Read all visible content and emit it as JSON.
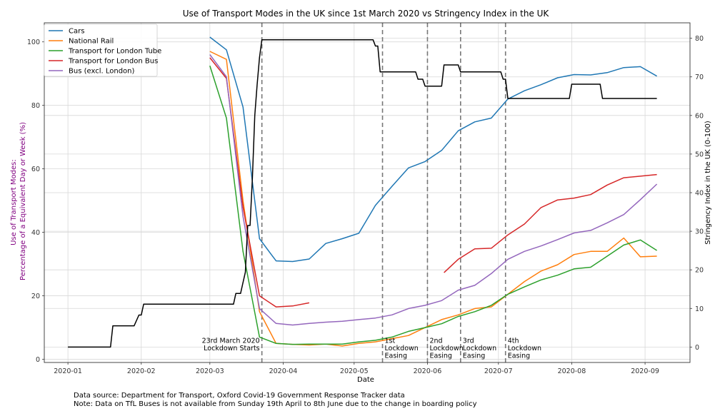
{
  "chart_data": {
    "type": "line",
    "title": "Use of Transport Modes in the UK since 1st March 2020 vs Stringency Index in the UK",
    "xlabel": "Date",
    "ylabel_left_lines": [
      "Use of Transport Modes:",
      "Percentage of a Equivalent Day or Week (%)"
    ],
    "ylabel_right": "Stringency Index in the UK (0-100)",
    "x_ticks": [
      "2020-01",
      "2020-02",
      "2020-03",
      "2020-04",
      "2020-05",
      "2020-06",
      "2020-07",
      "2020-08",
      "2020-09"
    ],
    "x_tick_dates": [
      "2020-01-01",
      "2020-02-01",
      "2020-03-01",
      "2020-04-01",
      "2020-05-01",
      "2020-06-01",
      "2020-07-01",
      "2020-08-01",
      "2020-09-01"
    ],
    "xlim": [
      "2019-12-22",
      "2020-09-20"
    ],
    "ylim_left": [
      -1,
      106
    ],
    "yticks_left": [
      0,
      20,
      40,
      60,
      80,
      100
    ],
    "ylim_right": [
      -4,
      84
    ],
    "yticks_right": [
      0,
      10,
      20,
      30,
      40,
      50,
      60,
      70,
      80
    ],
    "grid": true,
    "legend_position": "top-left",
    "colors": {
      "cars": "#1f77b4",
      "rail": "#ff7f0e",
      "tube": "#2ca02c",
      "tflbus": "#d62728",
      "bus": "#9467bd",
      "stringency": "#000000",
      "left_axis_text": "#800080"
    },
    "series": [
      {
        "name": "Cars",
        "color": "#1f77b4",
        "points": [
          [
            "2020-03-01",
            101.5
          ],
          [
            "2020-03-08",
            97.5
          ],
          [
            "2020-03-15",
            79.5
          ],
          [
            "2020-03-22",
            38
          ],
          [
            "2020-03-29",
            31
          ],
          [
            "2020-04-05",
            30.8
          ],
          [
            "2020-04-12",
            31.6
          ],
          [
            "2020-04-19",
            36.5
          ],
          [
            "2020-04-26",
            38
          ],
          [
            "2020-05-03",
            39.7
          ],
          [
            "2020-05-10",
            48.5
          ],
          [
            "2020-05-17",
            54.5
          ],
          [
            "2020-05-24",
            60.3
          ],
          [
            "2020-05-31",
            62.3
          ],
          [
            "2020-06-07",
            65.8
          ],
          [
            "2020-06-14",
            72
          ],
          [
            "2020-06-21",
            74.8
          ],
          [
            "2020-06-28",
            76
          ],
          [
            "2020-07-05",
            82
          ],
          [
            "2020-07-12",
            84.6
          ],
          [
            "2020-07-19",
            86.5
          ],
          [
            "2020-07-26",
            88.7
          ],
          [
            "2020-08-02",
            89.7
          ],
          [
            "2020-08-09",
            89.6
          ],
          [
            "2020-08-16",
            90.3
          ],
          [
            "2020-08-23",
            91.9
          ],
          [
            "2020-08-30",
            92.2
          ],
          [
            "2020-09-06",
            89.2
          ]
        ]
      },
      {
        "name": "National Rail",
        "color": "#ff7f0e",
        "points": [
          [
            "2020-03-01",
            97
          ],
          [
            "2020-03-08",
            94.5
          ],
          [
            "2020-03-15",
            50
          ],
          [
            "2020-03-22",
            15
          ],
          [
            "2020-03-29",
            5
          ],
          [
            "2020-04-05",
            4.7
          ],
          [
            "2020-04-12",
            4.5
          ],
          [
            "2020-04-19",
            4.8
          ],
          [
            "2020-04-26",
            4.2
          ],
          [
            "2020-05-03",
            5
          ],
          [
            "2020-05-10",
            5.5
          ],
          [
            "2020-05-17",
            6.5
          ],
          [
            "2020-05-24",
            7.5
          ],
          [
            "2020-05-31",
            10
          ],
          [
            "2020-06-07",
            12.5
          ],
          [
            "2020-06-14",
            14
          ],
          [
            "2020-06-21",
            16
          ],
          [
            "2020-06-28",
            16.5
          ],
          [
            "2020-07-05",
            20.5
          ],
          [
            "2020-07-12",
            24.5
          ],
          [
            "2020-07-19",
            27.8
          ],
          [
            "2020-07-26",
            29.8
          ],
          [
            "2020-08-02",
            33
          ],
          [
            "2020-08-09",
            34
          ],
          [
            "2020-08-16",
            34
          ],
          [
            "2020-08-23",
            38.2
          ],
          [
            "2020-08-30",
            32.3
          ],
          [
            "2020-09-06",
            32.5
          ]
        ]
      },
      {
        "name": "Transport for London Tube",
        "color": "#2ca02c",
        "points": [
          [
            "2020-03-01",
            92.5
          ],
          [
            "2020-03-08",
            76
          ],
          [
            "2020-03-15",
            34
          ],
          [
            "2020-03-22",
            7
          ],
          [
            "2020-03-29",
            5
          ],
          [
            "2020-04-05",
            4.7
          ],
          [
            "2020-04-12",
            4.8
          ],
          [
            "2020-04-19",
            4.8
          ],
          [
            "2020-04-26",
            4.8
          ],
          [
            "2020-05-03",
            5.5
          ],
          [
            "2020-05-10",
            6
          ],
          [
            "2020-05-17",
            7
          ],
          [
            "2020-05-24",
            8.8
          ],
          [
            "2020-05-31",
            10
          ],
          [
            "2020-06-07",
            11.2
          ],
          [
            "2020-06-14",
            13.5
          ],
          [
            "2020-06-21",
            15
          ],
          [
            "2020-06-28",
            17
          ],
          [
            "2020-07-05",
            20.5
          ],
          [
            "2020-07-12",
            22.8
          ],
          [
            "2020-07-19",
            25
          ],
          [
            "2020-07-26",
            26.5
          ],
          [
            "2020-08-02",
            28.5
          ],
          [
            "2020-08-09",
            29
          ],
          [
            "2020-08-16",
            32.5
          ],
          [
            "2020-08-23",
            36
          ],
          [
            "2020-08-30",
            37.6
          ],
          [
            "2020-09-06",
            34.3
          ]
        ]
      },
      {
        "name": "Transport for London Bus",
        "color": "#d62728",
        "points": [
          [
            "2020-03-01",
            95
          ],
          [
            "2020-03-08",
            88.5
          ],
          [
            "2020-03-15",
            48
          ],
          [
            "2020-03-22",
            20
          ],
          [
            "2020-03-29",
            16.5
          ],
          [
            "2020-04-05",
            16.8
          ],
          [
            "2020-04-12",
            17.8
          ]
        ]
      },
      {
        "name": "",
        "color": "#d62728",
        "points": [
          [
            "2020-06-08",
            27.3
          ],
          [
            "2020-06-14",
            31.5
          ],
          [
            "2020-06-21",
            34.8
          ],
          [
            "2020-06-28",
            35
          ],
          [
            "2020-07-05",
            39.2
          ],
          [
            "2020-07-12",
            42.6
          ],
          [
            "2020-07-19",
            47.8
          ],
          [
            "2020-07-26",
            50.2
          ],
          [
            "2020-08-02",
            50.8
          ],
          [
            "2020-08-09",
            51.9
          ],
          [
            "2020-08-16",
            54.9
          ],
          [
            "2020-08-23",
            57.2
          ],
          [
            "2020-08-30",
            57.7
          ],
          [
            "2020-09-06",
            58.2
          ]
        ]
      },
      {
        "name": "Bus (excl. London)",
        "color": "#9467bd",
        "points": [
          [
            "2020-03-01",
            96
          ],
          [
            "2020-03-08",
            89
          ],
          [
            "2020-03-15",
            45
          ],
          [
            "2020-03-22",
            16
          ],
          [
            "2020-03-29",
            11.3
          ],
          [
            "2020-04-05",
            10.8
          ],
          [
            "2020-04-12",
            11.3
          ],
          [
            "2020-04-19",
            11.7
          ],
          [
            "2020-04-26",
            12
          ],
          [
            "2020-05-03",
            12.5
          ],
          [
            "2020-05-10",
            13
          ],
          [
            "2020-05-17",
            14
          ],
          [
            "2020-05-24",
            16
          ],
          [
            "2020-05-31",
            17
          ],
          [
            "2020-06-07",
            18.5
          ],
          [
            "2020-06-14",
            21.8
          ],
          [
            "2020-06-21",
            23.3
          ],
          [
            "2020-06-28",
            27
          ],
          [
            "2020-07-05",
            31.5
          ],
          [
            "2020-07-12",
            34
          ],
          [
            "2020-07-19",
            35.7
          ],
          [
            "2020-07-26",
            37.7
          ],
          [
            "2020-08-02",
            39.8
          ],
          [
            "2020-08-09",
            40.6
          ],
          [
            "2020-08-16",
            43
          ],
          [
            "2020-08-23",
            45.6
          ],
          [
            "2020-08-30",
            50.3
          ],
          [
            "2020-09-06",
            55.2
          ]
        ]
      }
    ],
    "stringency": {
      "color": "#000000",
      "points": [
        [
          "2020-01-01",
          0
        ],
        [
          "2020-01-19",
          0
        ],
        [
          "2020-01-20",
          5.5
        ],
        [
          "2020-01-29",
          5.5
        ],
        [
          "2020-01-31",
          8.3
        ],
        [
          "2020-02-01",
          8.3
        ],
        [
          "2020-02-02",
          11.1
        ],
        [
          "2020-03-11",
          11.1
        ],
        [
          "2020-03-12",
          13.9
        ],
        [
          "2020-03-14",
          13.9
        ],
        [
          "2020-03-15",
          16.7
        ],
        [
          "2020-03-16",
          19.4
        ],
        [
          "2020-03-17",
          31.5
        ],
        [
          "2020-03-18",
          31.5
        ],
        [
          "2020-03-19",
          44
        ],
        [
          "2020-03-20",
          60
        ],
        [
          "2020-03-21",
          68
        ],
        [
          "2020-03-22",
          75
        ],
        [
          "2020-03-23",
          79.6
        ],
        [
          "2020-03-24",
          79.6
        ],
        [
          "2020-05-09",
          79.6
        ],
        [
          "2020-05-10",
          78
        ],
        [
          "2020-05-11",
          78
        ],
        [
          "2020-05-12",
          71.3
        ],
        [
          "2020-05-27",
          71.3
        ],
        [
          "2020-05-28",
          69.4
        ],
        [
          "2020-05-30",
          69.4
        ],
        [
          "2020-05-31",
          67.6
        ],
        [
          "2020-06-07",
          67.6
        ],
        [
          "2020-06-08",
          73.1
        ],
        [
          "2020-06-14",
          73.1
        ],
        [
          "2020-06-15",
          71.3
        ],
        [
          "2020-07-02",
          71.3
        ],
        [
          "2020-07-03",
          69.4
        ],
        [
          "2020-07-04",
          69.4
        ],
        [
          "2020-07-05",
          64.4
        ],
        [
          "2020-07-31",
          64.4
        ],
        [
          "2020-08-01",
          68.1
        ],
        [
          "2020-08-13",
          68.1
        ],
        [
          "2020-08-14",
          64.4
        ],
        [
          "2020-09-06",
          64.4
        ]
      ]
    },
    "events": [
      {
        "date": "2020-03-23",
        "label_lines": [
          "23rd March 2020",
          "Lockdown Starts"
        ],
        "anchor": "end"
      },
      {
        "date": "2020-05-13",
        "label_lines": [
          "1st",
          "Lockdown",
          "Easing"
        ],
        "anchor": "start"
      },
      {
        "date": "2020-06-01",
        "label_lines": [
          "2nd",
          "Lockdown",
          "Easing"
        ],
        "anchor": "start"
      },
      {
        "date": "2020-06-15",
        "label_lines": [
          "3rd",
          "Lockdown",
          "Easing"
        ],
        "anchor": "start"
      },
      {
        "date": "2020-07-04",
        "label_lines": [
          "4th",
          "Lockdown",
          "Easing"
        ],
        "anchor": "start"
      }
    ]
  },
  "footnotes": [
    "Data source: Department for Transport, Oxford Covid-19 Government Response Tracker data",
    "Note: Data on TfL Buses is not available from Sunday 19th April to 8th June due to the change in boarding policy"
  ]
}
